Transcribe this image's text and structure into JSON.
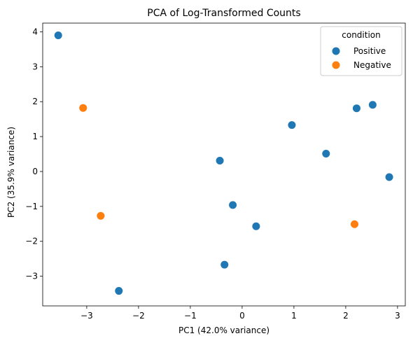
{
  "chart_data": {
    "type": "scatter",
    "title": "PCA of Log-Transformed Counts",
    "xlabel": "PC1 (42.0% variance)",
    "ylabel": "PC2 (35.9% variance)",
    "xlim": [
      -3.85,
      3.15
    ],
    "ylim": [
      -3.85,
      4.25
    ],
    "xticks": [
      -3,
      -2,
      -1,
      0,
      1,
      2,
      3
    ],
    "yticks": [
      -3,
      -2,
      -1,
      0,
      1,
      2,
      3,
      4
    ],
    "grid": false,
    "legend": {
      "title": "condition",
      "placement": "top-right"
    },
    "series": [
      {
        "name": "Positive",
        "color": "#1f77b4",
        "points": [
          [
            -3.55,
            3.9
          ],
          [
            2.52,
            1.91
          ],
          [
            2.21,
            1.81
          ],
          [
            0.96,
            1.33
          ],
          [
            1.62,
            0.51
          ],
          [
            -0.43,
            0.31
          ],
          [
            2.84,
            -0.16
          ],
          [
            -0.18,
            -0.96
          ],
          [
            0.27,
            -1.57
          ],
          [
            -0.34,
            -2.67
          ],
          [
            -2.38,
            -3.42
          ]
        ]
      },
      {
        "name": "Negative",
        "color": "#ff7f0e",
        "points": [
          [
            -3.07,
            1.82
          ],
          [
            -2.73,
            -1.27
          ],
          [
            2.17,
            -1.51
          ]
        ]
      }
    ]
  }
}
